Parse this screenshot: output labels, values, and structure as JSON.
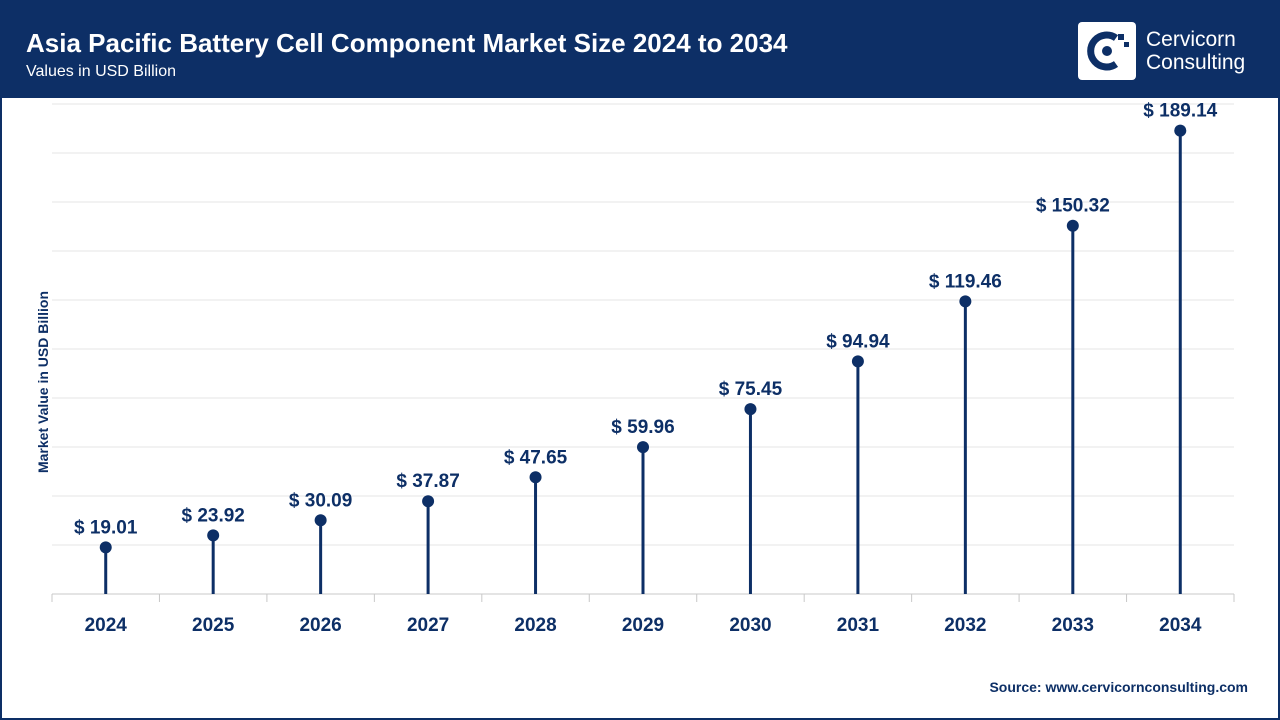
{
  "header": {
    "title": "Asia Pacific Battery Cell Component Market Size 2024 to 2034",
    "subtitle": "Values in USD Billion"
  },
  "logo": {
    "line1": "Cervicorn",
    "line2": "Consulting"
  },
  "source": {
    "label": "Source:",
    "url": "www.cervicornconsulting.com"
  },
  "colors": {
    "primary": "#0d2f66",
    "grid": "#e6e6e6",
    "axis": "#c8c8c8"
  },
  "chart_data": {
    "type": "lollipop",
    "title": "Asia Pacific Battery Cell Component Market Size 2024 to 2034",
    "ylabel": "Market Value in USD Billion",
    "xlabel": "",
    "value_prefix": "$ ",
    "ylim": [
      0,
      200
    ],
    "grid": true,
    "categories": [
      "2024",
      "2025",
      "2026",
      "2027",
      "2028",
      "2029",
      "2030",
      "2031",
      "2032",
      "2033",
      "2034"
    ],
    "values": [
      19.01,
      23.92,
      30.09,
      37.87,
      47.65,
      59.96,
      75.45,
      94.94,
      119.46,
      150.32,
      189.14
    ],
    "labels": [
      "$ 19.01",
      "$ 23.92",
      "$ 30.09",
      "$ 37.87",
      "$ 47.65",
      "$ 59.96",
      "$ 75.45",
      "$ 94.94",
      "$ 119.46",
      "$ 150.32",
      "$ 189.14"
    ]
  }
}
